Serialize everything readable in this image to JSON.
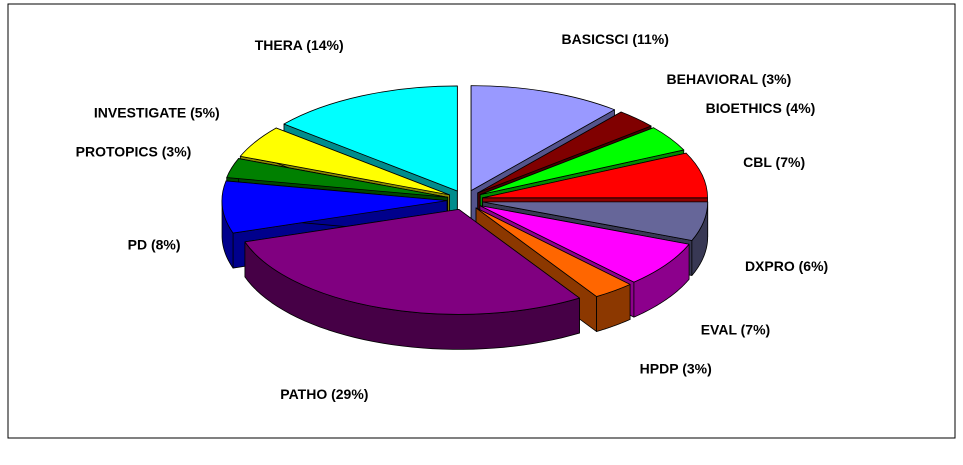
{
  "chart_data": {
    "type": "pie",
    "categories": [
      "BASICSCI",
      "BEHAVIORAL",
      "BIOETHICS",
      "CBL",
      "DXPRO",
      "EVAL",
      "HPDP",
      "PATHO",
      "PD",
      "PROTOPICS",
      "INVESTIGATE",
      "THERA"
    ],
    "values": [
      11,
      3,
      4,
      7,
      6,
      7,
      3,
      29,
      8,
      3,
      5,
      14
    ],
    "value_labels": [
      "(11%)",
      "(3%)",
      "(4%)",
      "(7%)",
      "(6%)",
      "(7%)",
      "(3%)",
      "(29%)",
      "(8%)",
      "(3%)",
      "(5%)",
      "(14%)"
    ],
    "colors": [
      "#9999ff",
      "#800000",
      "#00ff00",
      "#ff0000",
      "#666699",
      "#ff00ff",
      "#ff6600",
      "#800080",
      "#0000ff",
      "#008000",
      "#ffff00",
      "#00ffff"
    ],
    "three_d": true,
    "exploded": true
  }
}
